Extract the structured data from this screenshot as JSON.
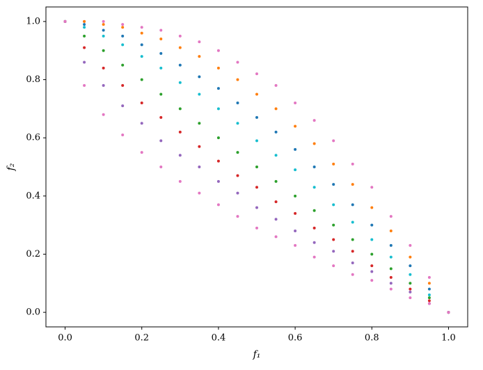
{
  "chart_data": {
    "type": "scatter",
    "xlabel": "f₁",
    "ylabel": "f₂",
    "xlim": [
      -0.05,
      1.05
    ],
    "ylim": [
      -0.05,
      1.05
    ],
    "xticks": [
      {
        "value": 0,
        "label": "0.0"
      },
      0.2,
      0.4,
      0.6,
      0.8,
      {
        "value": 1,
        "label": "1.0"
      }
    ],
    "yticks": [
      {
        "value": 0,
        "label": "0.0"
      },
      0.2,
      0.4,
      0.6,
      0.8,
      {
        "value": 1,
        "label": "1.0"
      }
    ],
    "x": [
      0,
      0.05,
      0.1,
      0.15,
      0.2,
      0.25,
      0.3,
      0.35,
      0.4,
      0.45,
      0.5,
      0.55,
      0.6,
      0.65,
      0.7,
      0.75,
      0.8,
      0.85,
      0.9,
      0.95,
      1
    ],
    "series": [
      {
        "color": "#e377c2",
        "values": [
          1,
          1.0,
          1.0,
          0.99,
          0.98,
          0.97,
          0.95,
          0.93,
          0.9,
          0.86,
          0.82,
          0.78,
          0.72,
          0.66,
          0.59,
          0.51,
          0.43,
          0.33,
          0.23,
          0.12,
          0
        ]
      },
      {
        "color": "#ff7f0e",
        "values": [
          1,
          1.0,
          0.99,
          0.98,
          0.96,
          0.94,
          0.91,
          0.88,
          0.84,
          0.8,
          0.75,
          0.7,
          0.64,
          0.58,
          0.51,
          0.44,
          0.36,
          0.28,
          0.19,
          0.1,
          0
        ]
      },
      {
        "color": "#1f77b4",
        "values": [
          1,
          0.99,
          0.97,
          0.95,
          0.92,
          0.89,
          0.85,
          0.81,
          0.77,
          0.72,
          0.67,
          0.62,
          0.56,
          0.5,
          0.44,
          0.37,
          0.3,
          0.23,
          0.16,
          0.08,
          0
        ]
      },
      {
        "color": "#17becf",
        "values": [
          1,
          0.98,
          0.95,
          0.92,
          0.88,
          0.84,
          0.79,
          0.75,
          0.7,
          0.65,
          0.59,
          0.54,
          0.49,
          0.43,
          0.37,
          0.31,
          0.25,
          0.19,
          0.13,
          0.06,
          0
        ]
      },
      {
        "color": "#2ca02c",
        "values": [
          1,
          0.95,
          0.9,
          0.85,
          0.8,
          0.75,
          0.7,
          0.65,
          0.6,
          0.55,
          0.5,
          0.45,
          0.4,
          0.35,
          0.3,
          0.25,
          0.2,
          0.15,
          0.1,
          0.05,
          0
        ]
      },
      {
        "color": "#d62728",
        "values": [
          1,
          0.91,
          0.84,
          0.78,
          0.72,
          0.67,
          0.62,
          0.57,
          0.52,
          0.47,
          0.43,
          0.38,
          0.34,
          0.29,
          0.25,
          0.21,
          0.16,
          0.12,
          0.08,
          0.04,
          0
        ]
      },
      {
        "color": "#9467bd",
        "values": [
          1,
          0.86,
          0.78,
          0.71,
          0.65,
          0.59,
          0.54,
          0.5,
          0.45,
          0.41,
          0.36,
          0.32,
          0.28,
          0.24,
          0.21,
          0.17,
          0.14,
          0.1,
          0.07,
          0.03,
          0
        ]
      },
      {
        "color": "#e377c2",
        "values": [
          1,
          0.78,
          0.68,
          0.61,
          0.55,
          0.5,
          0.45,
          0.41,
          0.37,
          0.33,
          0.29,
          0.26,
          0.23,
          0.19,
          0.16,
          0.13,
          0.11,
          0.08,
          0.05,
          0.03,
          0
        ]
      }
    ]
  }
}
